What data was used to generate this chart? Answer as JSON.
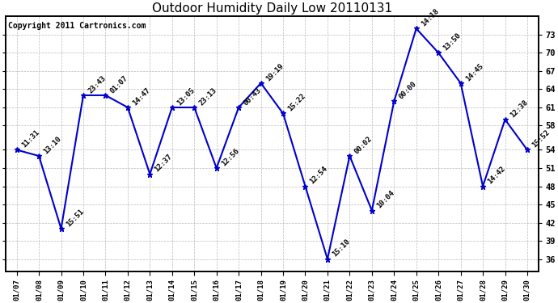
{
  "title": "Outdoor Humidity Daily Low 20110131",
  "copyright_text": "Copyright 2011 Cartronics.com",
  "dates": [
    "01/07",
    "01/08",
    "01/09",
    "01/10",
    "01/11",
    "01/12",
    "01/13",
    "01/14",
    "01/15",
    "01/16",
    "01/17",
    "01/18",
    "01/19",
    "01/20",
    "01/21",
    "01/22",
    "01/23",
    "01/24",
    "01/25",
    "01/26",
    "01/27",
    "01/28",
    "01/29",
    "01/30"
  ],
  "values": [
    54,
    53,
    41,
    63,
    63,
    61,
    50,
    61,
    61,
    51,
    61,
    65,
    60,
    48,
    36,
    53,
    44,
    62,
    74,
    70,
    65,
    48,
    59,
    54
  ],
  "annotations": [
    "11:31",
    "13:10",
    "15:51",
    "23:43",
    "01:07",
    "14:47",
    "12:37",
    "13:05",
    "23:13",
    "12:56",
    "00:43",
    "19:19",
    "15:22",
    "12:54",
    "15:10",
    "00:02",
    "10:04",
    "00:00",
    "14:18",
    "13:50",
    "14:45",
    "14:42",
    "12:38",
    "15:52"
  ],
  "line_color": "#0000cc",
  "marker_color": "#0000cc",
  "bg_color": "#ffffff",
  "grid_color": "#bbbbbb",
  "ylim": [
    34,
    76
  ],
  "yticks_right": [
    36,
    39,
    42,
    45,
    48,
    51,
    54,
    58,
    61,
    64,
    67,
    70,
    73
  ],
  "title_fontsize": 11,
  "annotation_fontsize": 6.5,
  "copyright_fontsize": 7
}
